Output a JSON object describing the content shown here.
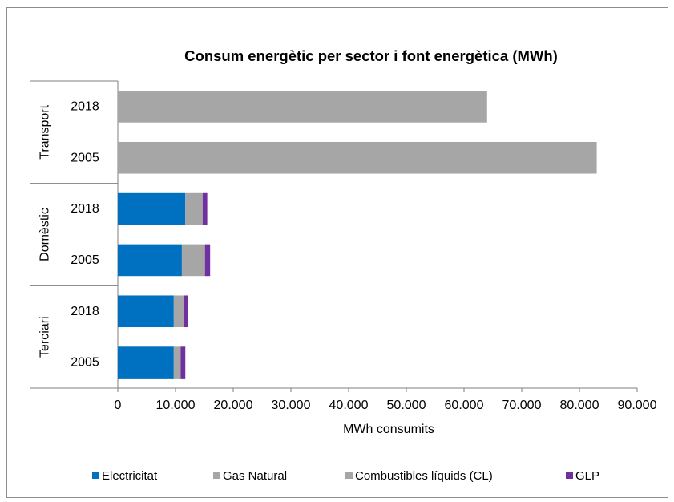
{
  "chart_data": {
    "type": "bar",
    "orientation": "horizontal",
    "stacked": true,
    "title": "Consum energètic per sector i font energètica (MWh)",
    "xlabel": "MWh consumits",
    "ylabel": "",
    "xlim": [
      0,
      90000
    ],
    "x_ticks": [
      0,
      10000,
      20000,
      30000,
      40000,
      50000,
      60000,
      70000,
      80000,
      90000
    ],
    "x_tick_labels": [
      "0",
      "10.000",
      "20.000",
      "30.000",
      "40.000",
      "50.000",
      "60.000",
      "70.000",
      "80.000",
      "90.000"
    ],
    "grid": false,
    "legend_position": "bottom",
    "groups": [
      {
        "name": "Transport",
        "categories": [
          "2018",
          "2005"
        ]
      },
      {
        "name": "Domèstic",
        "categories": [
          "2018",
          "2005"
        ]
      },
      {
        "name": "Terciari",
        "categories": [
          "2018",
          "2005"
        ]
      }
    ],
    "categories": [
      "Transport 2018",
      "Transport 2005",
      "Domèstic 2018",
      "Domèstic 2005",
      "Terciari 2018",
      "Terciari 2005"
    ],
    "series": [
      {
        "name": "Electricitat",
        "color": "#0070c0",
        "values": [
          0,
          0,
          11700,
          11100,
          9700,
          9700
        ]
      },
      {
        "name": "Gas Natural",
        "color": "#a6a6a6",
        "values": [
          0,
          0,
          0,
          0,
          0,
          0
        ]
      },
      {
        "name": "Combustibles líquids (CL)",
        "color": "#a6a6a6",
        "values": [
          64000,
          83000,
          3000,
          4000,
          1800,
          1200
        ]
      },
      {
        "name": "GLP",
        "color": "#7030a0",
        "values": [
          0,
          0,
          800,
          900,
          600,
          800
        ]
      }
    ]
  }
}
